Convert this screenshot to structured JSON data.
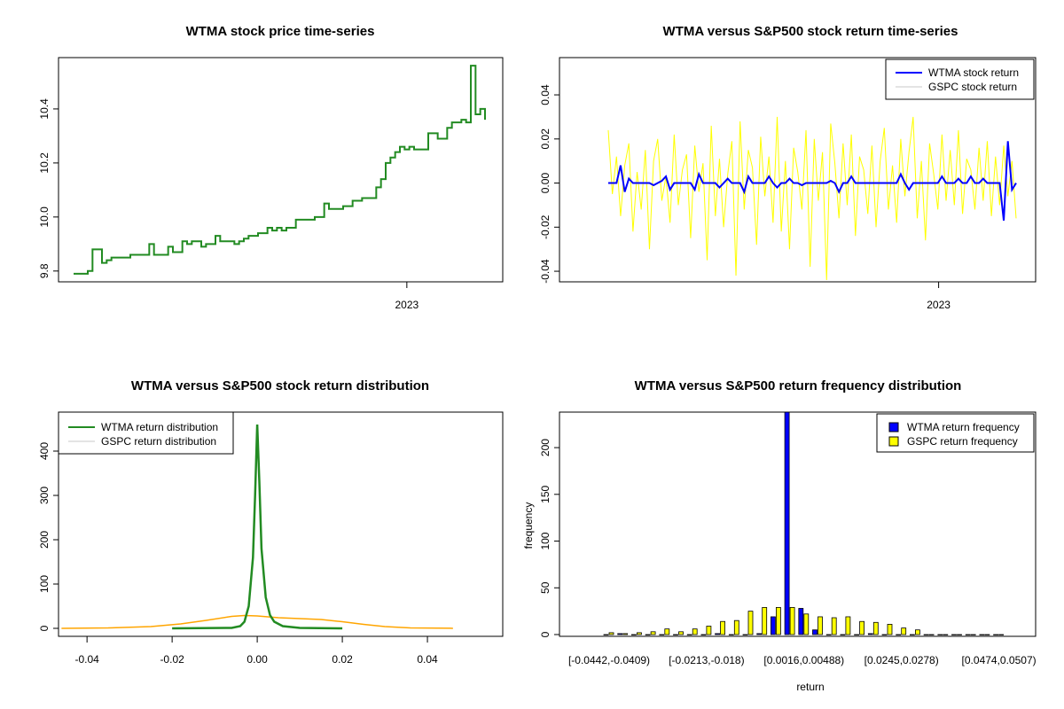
{
  "chart_data": [
    {
      "type": "line",
      "title": "WTMA stock price time-series",
      "xlabel": "",
      "ylabel": "",
      "x_tick_labels": [
        "2023"
      ],
      "x_tick_position_index_fraction": 0.81,
      "y_ticks": [
        9.8,
        10.0,
        10.2,
        10.4
      ],
      "y_tick_labels": [
        "9.8",
        "10.0",
        "10.2",
        "10.4"
      ],
      "ylim": [
        9.76,
        10.59
      ],
      "color": "#228B22",
      "series": [
        {
          "name": "WTMA price",
          "values": [
            9.79,
            9.79,
            9.79,
            9.8,
            9.88,
            9.88,
            9.83,
            9.84,
            9.85,
            9.85,
            9.85,
            9.85,
            9.86,
            9.86,
            9.86,
            9.86,
            9.9,
            9.86,
            9.86,
            9.86,
            9.89,
            9.87,
            9.87,
            9.91,
            9.9,
            9.91,
            9.91,
            9.89,
            9.9,
            9.9,
            9.93,
            9.91,
            9.91,
            9.91,
            9.9,
            9.91,
            9.92,
            9.93,
            9.93,
            9.94,
            9.94,
            9.96,
            9.95,
            9.96,
            9.95,
            9.96,
            9.96,
            9.99,
            9.99,
            9.99,
            9.99,
            10.0,
            10.0,
            10.05,
            10.03,
            10.03,
            10.03,
            10.04,
            10.04,
            10.06,
            10.06,
            10.07,
            10.07,
            10.07,
            10.11,
            10.14,
            10.2,
            10.22,
            10.24,
            10.26,
            10.25,
            10.26,
            10.25,
            10.25,
            10.25,
            10.31,
            10.31,
            10.29,
            10.29,
            10.33,
            10.35,
            10.35,
            10.36,
            10.35,
            10.56,
            10.38,
            10.4,
            10.36
          ]
        }
      ]
    },
    {
      "type": "line",
      "title": "WTMA versus S&P500 stock return time-series",
      "x_tick_labels": [
        "2023"
      ],
      "x_tick_position_index_fraction": 0.81,
      "y_ticks": [
        -0.04,
        -0.02,
        0,
        0.02,
        0.04
      ],
      "y_tick_labels": [
        "-0.04",
        "-0.02",
        "0.00",
        "0.02",
        "0.04"
      ],
      "ylim": [
        -0.0448,
        0.0569
      ],
      "legend": "top-right",
      "series": [
        {
          "name": "GSPC stock return",
          "legend_label": "GSPC stock return",
          "color": "#FFFF00",
          "legend_color": "#C8C8C8",
          "values": [
            0.024,
            -0.005,
            0.012,
            -0.015,
            0.008,
            0.018,
            -0.022,
            0.005,
            -0.012,
            0.015,
            -0.03,
            0.01,
            0.02,
            -0.008,
            0.003,
            -0.018,
            0.022,
            -0.01,
            0.006,
            0.013,
            -0.025,
            0.017,
            -0.004,
            0.009,
            -0.035,
            0.026,
            -0.015,
            0.011,
            -0.02,
            0.004,
            0.019,
            -0.042,
            0.028,
            -0.012,
            0.015,
            0.007,
            -0.028,
            0.021,
            -0.006,
            0.012,
            -0.018,
            0.03,
            -0.022,
            0.01,
            -0.03,
            0.016,
            0.005,
            -0.012,
            0.024,
            -0.038,
            0.02,
            -0.008,
            0.014,
            -0.044,
            0.027,
            0.009,
            -0.016,
            0.018,
            -0.01,
            0.022,
            -0.024,
            0.012,
            0.006,
            -0.014,
            0.017,
            -0.02,
            0.01,
            0.025,
            -0.012,
            0.008,
            -0.018,
            0.02,
            -0.006,
            0.014,
            0.03,
            -0.016,
            0.01,
            -0.026,
            0.018,
            0.004,
            -0.012,
            0.022,
            -0.008,
            0.015,
            -0.01,
            0.024,
            -0.014,
            0.011,
            0.006,
            -0.012,
            0.016,
            -0.008,
            0.019,
            -0.015,
            0.012,
            -0.01,
            0.017,
            -0.006,
            0.01,
            -0.016
          ]
        },
        {
          "name": "WTMA stock return",
          "legend_label": "WTMA stock return",
          "color": "#0000FF",
          "legend_color": "#0000FF",
          "values": [
            0,
            0,
            0,
            0.008,
            -0.004,
            0.002,
            0,
            0,
            0,
            0,
            0,
            -0.001,
            0,
            0.001,
            0.003,
            -0.003,
            0,
            0,
            0,
            0,
            0,
            -0.003,
            0.004,
            0,
            0,
            0,
            0,
            -0.002,
            0,
            0.002,
            0,
            0,
            0,
            -0.004,
            0.003,
            0,
            0,
            0,
            0,
            0.003,
            0,
            -0.002,
            0,
            0,
            0.002,
            0,
            0,
            -0.001,
            0,
            0,
            0,
            0,
            0,
            0,
            0.001,
            0,
            -0.004,
            0,
            0,
            0.003,
            0,
            0,
            0,
            0,
            0,
            0,
            0,
            0,
            0,
            0,
            0,
            0.004,
            0,
            -0.003,
            0,
            0,
            0,
            0,
            0,
            0,
            0,
            0.003,
            0,
            0,
            0,
            0.002,
            0,
            0,
            0.003,
            0,
            0,
            0.002,
            0,
            0,
            0,
            0,
            -0.017,
            0.019,
            -0.003,
            0
          ]
        }
      ]
    },
    {
      "type": "line",
      "title": "WTMA versus S&P500 stock return distribution",
      "x_ticks": [
        -0.04,
        -0.02,
        0,
        0.02,
        0.04
      ],
      "x_tick_labels": [
        "-0.04",
        "-0.02",
        "0.00",
        "0.02",
        "0.04"
      ],
      "y_ticks": [
        0,
        100,
        200,
        300,
        400
      ],
      "y_tick_labels": [
        "0",
        "100",
        "200",
        "300",
        "400"
      ],
      "xlim": [
        -0.0467,
        0.0577
      ],
      "ylim": [
        -18,
        488
      ],
      "legend": "top-left",
      "series": [
        {
          "name": "WTMA return distribution",
          "color": "#228B22",
          "legend_color": "#228B22",
          "points": [
            [
              -0.02,
              0
            ],
            [
              -0.006,
              1
            ],
            [
              -0.004,
              5
            ],
            [
              -0.003,
              15
            ],
            [
              -0.002,
              50
            ],
            [
              -0.001,
              160
            ],
            [
              -0.0005,
              300
            ],
            [
              0,
              460
            ],
            [
              0.0005,
              330
            ],
            [
              0.001,
              180
            ],
            [
              0.002,
              70
            ],
            [
              0.003,
              30
            ],
            [
              0.004,
              15
            ],
            [
              0.006,
              5
            ],
            [
              0.01,
              1
            ],
            [
              0.02,
              0
            ]
          ]
        },
        {
          "name": "GSPC return distribution",
          "color": "#FFA500",
          "legend_color": "#C8C8C8",
          "points": [
            [
              -0.046,
              0.1
            ],
            [
              -0.035,
              1
            ],
            [
              -0.025,
              4
            ],
            [
              -0.018,
              10
            ],
            [
              -0.012,
              18
            ],
            [
              -0.006,
              27
            ],
            [
              -0.003,
              29
            ],
            [
              0,
              28
            ],
            [
              0.005,
              24
            ],
            [
              0.01,
              22
            ],
            [
              0.015,
              20
            ],
            [
              0.02,
              15
            ],
            [
              0.025,
              9
            ],
            [
              0.03,
              4
            ],
            [
              0.036,
              1
            ],
            [
              0.046,
              0.1
            ]
          ]
        }
      ]
    },
    {
      "type": "bar",
      "title": "WTMA versus S&P500 return frequency distribution",
      "xlabel": "return",
      "ylabel": "frequency",
      "bins": 29,
      "category_labels": {
        "0": "[-0.0442,-0.0409)",
        "7": "[-0.0213,-0.018)",
        "14": "[0.0016,0.00488)",
        "21": "[0.0245,0.0278)",
        "28": "[0.0474,0.0507)"
      },
      "y_ticks": [
        0,
        50,
        100,
        150,
        200
      ],
      "y_tick_labels": [
        "0",
        "50",
        "100",
        "150",
        "200"
      ],
      "ylim": [
        0,
        238
      ],
      "legend": "top-right",
      "series": [
        {
          "name": "WTMA return frequency",
          "color": "#0000FF",
          "values": [
            0,
            1,
            0,
            0,
            0,
            0,
            0,
            0,
            1,
            0,
            0,
            1,
            19,
            240,
            28,
            5,
            0,
            0,
            0,
            1,
            0,
            0,
            0,
            0,
            0,
            0,
            0,
            0,
            0
          ]
        },
        {
          "name": "GSPC return frequency",
          "color": "#FFFF00",
          "values": [
            2,
            1,
            2,
            3,
            6,
            3,
            6,
            9,
            14,
            15,
            25,
            29,
            29,
            29,
            22,
            19,
            18,
            19,
            14,
            13,
            11,
            7,
            5,
            0,
            0,
            0,
            0,
            0,
            0
          ]
        }
      ]
    }
  ]
}
